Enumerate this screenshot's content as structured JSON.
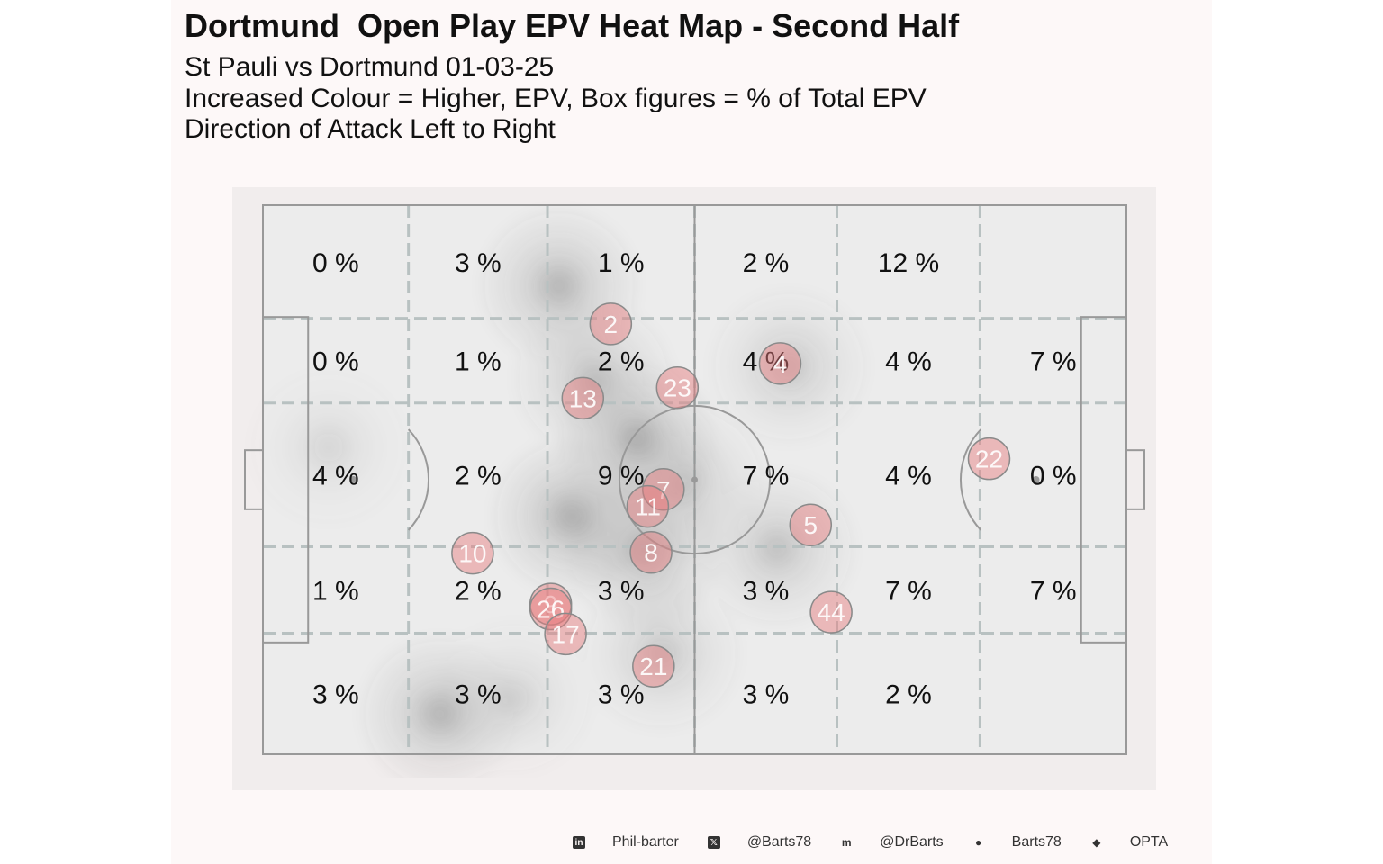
{
  "title": "Dortmund  Open Play EPV Heat Map - Second Half",
  "subtitle_lines": [
    "St Pauli vs Dortmund 01-03-25",
    "Increased Colour = Higher, EPV, Box figures = % of Total EPV",
    "Direction of Attack Left to Right"
  ],
  "colors": {
    "background": "#fdf8f8",
    "pitch": "#ececec",
    "lines": "#999999",
    "zone_lines": "#b8c1c1",
    "player": "#e8797c"
  },
  "chart_data": {
    "type": "heatmap",
    "pitch": {
      "length": 105,
      "width": 68
    },
    "zones": {
      "x_bounds": [
        0,
        17.7,
        34.6,
        52.5,
        69.8,
        87.2,
        105
      ],
      "y_bounds": [
        0,
        14.0,
        24.5,
        42.3,
        53.0,
        68
      ],
      "rows": [
        [
          "0 %",
          "3 %",
          "1 %",
          "2 %",
          "12 %",
          ""
        ],
        [
          "0 %",
          "1 %",
          "2 %",
          "4 %",
          "4 %",
          "7 %"
        ],
        [
          "4 %",
          "2 %",
          "9 %",
          "7 %",
          "4 %",
          "0 %"
        ],
        [
          "1 %",
          "2 %",
          "3 %",
          "3 %",
          "7 %",
          "7 %"
        ],
        [
          "3 %",
          "3 %",
          "3 %",
          "3 %",
          "2 %",
          ""
        ]
      ]
    },
    "density_peaks": [
      {
        "x": 36.0,
        "y": 10.0,
        "level": 0.55
      },
      {
        "x": 40.2,
        "y": 21.5,
        "level": 0.45
      },
      {
        "x": 37.5,
        "y": 38.5,
        "level": 0.62
      },
      {
        "x": 45.5,
        "y": 29.0,
        "level": 0.6
      },
      {
        "x": 46.5,
        "y": 43.0,
        "level": 0.5
      },
      {
        "x": 51.5,
        "y": 34.5,
        "level": 0.35
      },
      {
        "x": 62.5,
        "y": 42.5,
        "level": 0.42
      },
      {
        "x": 64.0,
        "y": 20.0,
        "level": 0.35
      },
      {
        "x": 21.5,
        "y": 63.0,
        "level": 0.55
      },
      {
        "x": 48.5,
        "y": 55.5,
        "level": 0.35
      },
      {
        "x": 30.5,
        "y": 61.0,
        "level": 0.25
      },
      {
        "x": 8.0,
        "y": 30.0,
        "level": 0.2
      }
    ],
    "players": [
      {
        "label": "2",
        "x": 42.3,
        "y": 14.7,
        "size": 1.0
      },
      {
        "label": "4",
        "x": 62.9,
        "y": 19.6,
        "size": 1.0
      },
      {
        "label": "23",
        "x": 50.4,
        "y": 22.6,
        "size": 1.0
      },
      {
        "label": "13",
        "x": 38.9,
        "y": 23.9,
        "size": 1.0
      },
      {
        "label": "22",
        "x": 88.3,
        "y": 31.4,
        "size": 1.0
      },
      {
        "label": "7",
        "x": 48.7,
        "y": 35.2,
        "size": 1.0
      },
      {
        "label": "11",
        "x": 46.8,
        "y": 37.3,
        "size": 1.0
      },
      {
        "label": "5",
        "x": 66.6,
        "y": 39.6,
        "size": 1.0
      },
      {
        "label": "10",
        "x": 25.5,
        "y": 43.1,
        "size": 1.0
      },
      {
        "label": "8",
        "x": 47.2,
        "y": 43.0,
        "size": 1.0
      },
      {
        "label": "9",
        "x": 35.0,
        "y": 49.4,
        "size": 1.0
      },
      {
        "label": "26",
        "x": 35.0,
        "y": 50.0,
        "size": 1.0
      },
      {
        "label": "44",
        "x": 69.1,
        "y": 50.4,
        "size": 1.0
      },
      {
        "label": "17",
        "x": 36.8,
        "y": 53.1,
        "size": 1.0
      },
      {
        "label": "21",
        "x": 47.5,
        "y": 57.1,
        "size": 1.0
      }
    ]
  },
  "footer": [
    {
      "icon": "linkedin-icon",
      "glyph": "in",
      "label": "Phil-barter"
    },
    {
      "icon": "x-icon",
      "glyph": "𝕏",
      "label": "@Barts78"
    },
    {
      "icon": "mastodon-icon",
      "glyph": "m",
      "label": "@DrBarts"
    },
    {
      "icon": "github-icon",
      "glyph": "●",
      "label": "Barts78"
    },
    {
      "icon": "dropbox-icon",
      "glyph": "◆",
      "label": "OPTA"
    }
  ]
}
